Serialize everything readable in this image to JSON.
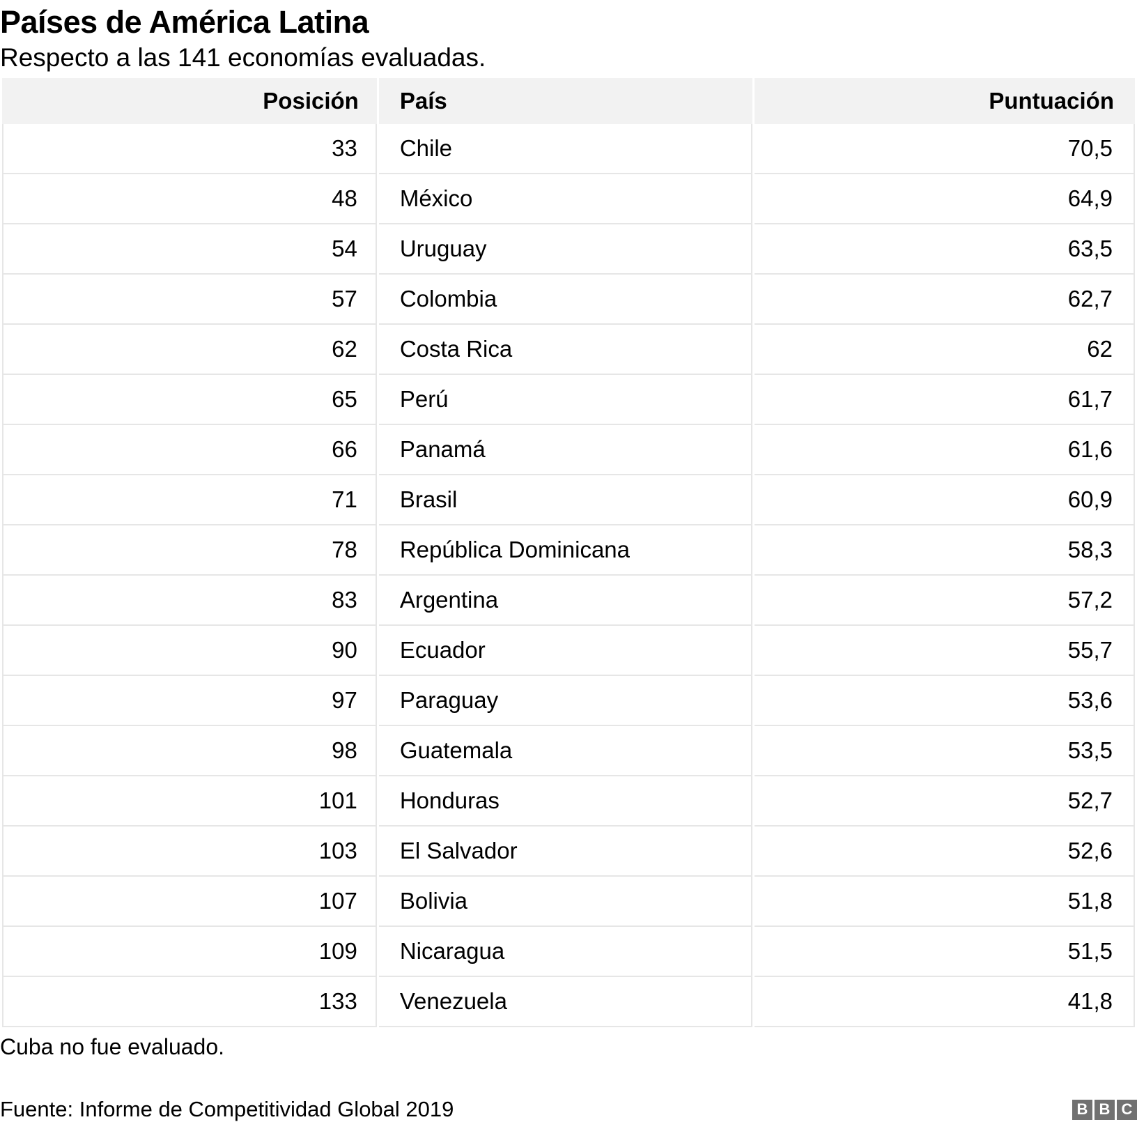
{
  "chart_data": {
    "type": "table",
    "title": "Países de América Latina",
    "subtitle": "Respecto a las 141 economías evaluadas.",
    "columns": [
      "Posición",
      "País",
      "Puntuación"
    ],
    "rows": [
      {
        "position": "33",
        "country": "Chile",
        "score": 70.5,
        "score_display": "70,5"
      },
      {
        "position": "48",
        "country": "México",
        "score": 64.9,
        "score_display": "64,9"
      },
      {
        "position": "54",
        "country": "Uruguay",
        "score": 63.5,
        "score_display": "63,5"
      },
      {
        "position": "57",
        "country": "Colombia",
        "score": 62.7,
        "score_display": "62,7"
      },
      {
        "position": "62",
        "country": "Costa Rica",
        "score": 62,
        "score_display": "62"
      },
      {
        "position": "65",
        "country": "Perú",
        "score": 61.7,
        "score_display": "61,7"
      },
      {
        "position": "66",
        "country": "Panamá",
        "score": 61.6,
        "score_display": "61,6"
      },
      {
        "position": "71",
        "country": "Brasil",
        "score": 60.9,
        "score_display": "60,9"
      },
      {
        "position": "78",
        "country": "República Dominicana",
        "score": 58.3,
        "score_display": "58,3"
      },
      {
        "position": "83",
        "country": "Argentina",
        "score": 57.2,
        "score_display": "57,2"
      },
      {
        "position": "90",
        "country": "Ecuador",
        "score": 55.7,
        "score_display": "55,7"
      },
      {
        "position": "97",
        "country": "Paraguay",
        "score": 53.6,
        "score_display": "53,6"
      },
      {
        "position": "98",
        "country": "Guatemala",
        "score": 53.5,
        "score_display": "53,5"
      },
      {
        "position": "101",
        "country": "Honduras",
        "score": 52.7,
        "score_display": "52,7"
      },
      {
        "position": "103",
        "country": "El Salvador",
        "score": 52.6,
        "score_display": "52,6"
      },
      {
        "position": "107",
        "country": "Bolivia",
        "score": 51.8,
        "score_display": "51,8"
      },
      {
        "position": "109",
        "country": "Nicaragua",
        "score": 51.5,
        "score_display": "51,5"
      },
      {
        "position": "133",
        "country": "Venezuela",
        "score": 41.8,
        "score_display": "41,8"
      }
    ],
    "total_economies": 141,
    "notes": [
      "Cuba no fue evaluado."
    ],
    "source": "Fuente: Informe de Competitividad Global 2019",
    "layout_hints": {
      "grid": "horizontal-row-lines",
      "score_decimal_separator": "comma"
    }
  },
  "logo": {
    "letters": [
      "B",
      "B",
      "C"
    ]
  },
  "colors": {
    "text": "#000000",
    "header_bg": "#f2f2f2",
    "grid_border": "#e6e6e6",
    "rule": "#000000",
    "logo_gray": "#717171",
    "background": "#ffffff"
  }
}
